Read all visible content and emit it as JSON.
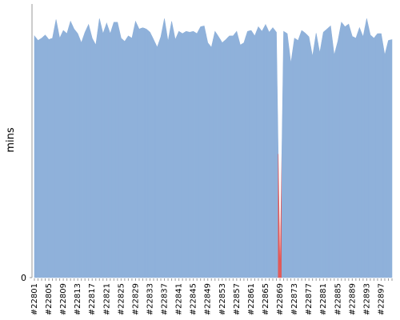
{
  "chart_data": {
    "type": "area",
    "y_label": "mins",
    "categories": [
      "#22801",
      null,
      null,
      null,
      "#22805",
      null,
      null,
      null,
      "#22809",
      null,
      null,
      null,
      "#22813",
      null,
      null,
      null,
      "#22817",
      null,
      null,
      null,
      "#22821",
      null,
      null,
      null,
      "#22825",
      null,
      null,
      null,
      "#22829",
      null,
      null,
      null,
      "#22833",
      null,
      null,
      null,
      "#22837",
      null,
      null,
      null,
      "#22841",
      null,
      null,
      null,
      "#22845",
      null,
      null,
      null,
      "#22849",
      null,
      null,
      null,
      "#22853",
      null,
      null,
      null,
      "#22857",
      null,
      null,
      null,
      "#22861",
      null,
      null,
      null,
      "#22865",
      null,
      null,
      null,
      "#22869",
      null,
      null,
      null,
      "#22873",
      null,
      null,
      null,
      "#22877",
      null,
      null,
      null,
      "#22881",
      null,
      null,
      null,
      "#22885",
      null,
      null,
      null,
      "#22889",
      null,
      null,
      null,
      "#22893",
      null,
      null,
      null,
      "#22897",
      null,
      null,
      null
    ],
    "values": [
      53,
      52,
      52.5,
      53.2,
      52.2,
      52.5,
      56.6,
      52.5,
      54.2,
      53.5,
      56.2,
      54.5,
      53.5,
      51.5,
      53.8,
      55.5,
      52.5,
      51,
      56.8,
      53.5,
      55.8,
      53.5,
      56,
      56,
      52.5,
      51.8,
      53,
      52.5,
      56.2,
      54.5,
      54.8,
      54.5,
      53.8,
      52.2,
      50.5,
      52.8,
      56.8,
      51.8,
      56.2,
      52.2,
      54,
      53.5,
      54,
      53.8,
      54,
      53.5,
      55,
      55.2,
      51.5,
      50.5,
      54,
      52.8,
      51.5,
      52.2,
      53,
      53,
      54,
      51,
      51.5,
      54,
      54.2,
      53,
      55,
      54,
      55.5,
      53.8,
      54.8,
      53.8,
      0.4,
      54,
      53.5,
      47,
      52.5,
      52,
      54.2,
      53.6,
      52.8,
      48.5,
      53.6,
      49.3,
      53.8,
      54.5,
      55.2,
      48.8,
      51.8,
      56,
      55,
      55.6,
      52.9,
      52.5,
      54.8,
      52.8,
      56.8,
      53.2,
      52.5,
      53.5,
      53.5,
      48.8,
      52,
      52.2
    ],
    "colors": [
      "#8fb1da",
      "#8fb1da",
      "#8fb1da",
      "#8fb1da",
      "#8fb1da",
      "#8fb1da",
      "#8fb1da",
      "#8fb1da",
      "#8fb1da",
      "#8fb1da",
      "#8fb1da",
      "#8fb1da",
      "#8fb1da",
      "#8fb1da",
      "#8fb1da",
      "#8fb1da",
      "#8fb1da",
      "#8fb1da",
      "#8fb1da",
      "#8fb1da",
      "#8fb1da",
      "#8fb1da",
      "#8fb1da",
      "#8fb1da",
      "#8fb1da",
      "#8fb1da",
      "#8fb1da",
      "#8fb1da",
      "#8fb1da",
      "#8fb1da",
      "#8fb1da",
      "#8fb1da",
      "#8fb1da",
      "#8fb1da",
      "#8fb1da",
      "#8fb1da",
      "#8fb1da",
      "#8fb1da",
      "#8fb1da",
      "#8fb1da",
      "#8fb1da",
      "#8fb1da",
      "#8fb1da",
      "#8fb1da",
      "#8fb1da",
      "#8fb1da",
      "#8fb1da",
      "#8fb1da",
      "#8fb1da",
      "#8fb1da",
      "#8fb1da",
      "#8fb1da",
      "#8fb1da",
      "#8fb1da",
      "#8fb1da",
      "#8fb1da",
      "#8fb1da",
      "#8fb1da",
      "#8fb1da",
      "#8fb1da",
      "#8fb1da",
      "#8fb1da",
      "#8fb1da",
      "#8fb1da",
      "#8fb1da",
      "#8fb1da",
      "#8fb1da",
      "#8fb1da",
      "#e05a5a",
      "#8fb1da",
      "#8fb1da",
      "#8fb1da",
      "#8fb1da",
      "#8fb1da",
      "#8fb1da",
      "#8fb1da",
      "#8fb1da",
      "#8fb1da",
      "#8fb1da",
      "#8fb1da",
      "#8fb1da",
      "#8fb1da",
      "#8fb1da",
      "#8fb1da",
      "#8fb1da",
      "#8fb1da",
      "#8fb1da",
      "#8fb1da",
      "#8fb1da",
      "#8fb1da",
      "#8fb1da",
      "#8fb1da",
      "#8fb1da",
      "#8fb1da",
      "#8fb1da",
      "#8fb1da",
      "#8fb1da",
      "#8fb1da",
      "#8fb1da",
      "#8fb1da"
    ],
    "ylim": [
      0,
      60
    ],
    "yticks": [
      0
    ]
  }
}
